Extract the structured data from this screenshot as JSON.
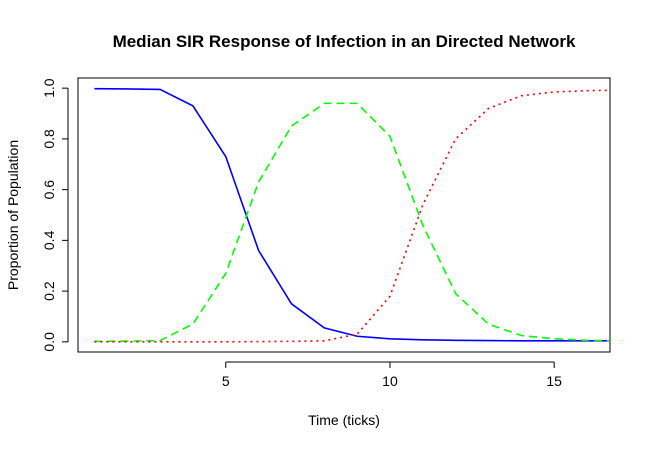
{
  "chart_data": {
    "type": "line",
    "title": "Median SIR Response of Infection in an Directed Network",
    "xlabel": "Time (ticks)",
    "ylabel": "Proportion of Population",
    "xlim": [
      0.5,
      16.7
    ],
    "ylim": [
      -0.04,
      1.04
    ],
    "grid": false,
    "x": [
      1,
      2,
      3,
      4,
      5,
      6,
      7,
      8,
      9,
      10,
      11,
      12,
      13,
      14,
      15,
      16,
      17
    ],
    "xticks": [
      5,
      10,
      15
    ],
    "xtick_labels": [
      "5",
      "10",
      "15"
    ],
    "yticks": [
      0.0,
      0.2,
      0.4,
      0.6,
      0.8,
      1.0
    ],
    "ytick_labels": [
      "0.0",
      "0.2",
      "0.4",
      "0.6",
      "0.8",
      "1.0"
    ],
    "series": [
      {
        "color": "#0000ff",
        "dash": "solid",
        "values": [
          0.998,
          0.997,
          0.995,
          0.93,
          0.73,
          0.36,
          0.15,
          0.055,
          0.022,
          0.012,
          0.008,
          0.006,
          0.005,
          0.004,
          0.004,
          0.004,
          0.004
        ]
      },
      {
        "color": "#00ff00",
        "dash": "dashed",
        "values": [
          0.002,
          0.003,
          0.005,
          0.07,
          0.27,
          0.63,
          0.85,
          0.94,
          0.94,
          0.81,
          0.46,
          0.19,
          0.07,
          0.025,
          0.012,
          0.006,
          0.004
        ]
      },
      {
        "color": "#ff0000",
        "dash": "dotted",
        "values": [
          0.0,
          0.0,
          0.0,
          0.0,
          0.0,
          0.001,
          0.002,
          0.004,
          0.03,
          0.18,
          0.54,
          0.8,
          0.92,
          0.97,
          0.985,
          0.99,
          0.992
        ]
      }
    ]
  }
}
